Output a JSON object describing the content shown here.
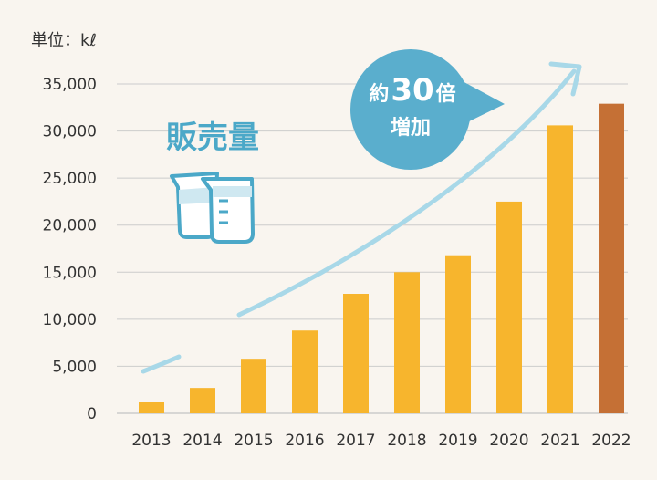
{
  "chart_data": {
    "type": "bar",
    "unit_label": "単位：kℓ",
    "series_title": "販売量",
    "annotation": {
      "prefix": "約",
      "number": "30",
      "suffix": "倍",
      "line2": "増加"
    },
    "categories": [
      "2013",
      "2014",
      "2015",
      "2016",
      "2017",
      "2018",
      "2019",
      "2020",
      "2021",
      "2022"
    ],
    "values": [
      1200,
      2700,
      5800,
      8800,
      12700,
      15000,
      16800,
      22500,
      30600,
      32900
    ],
    "y_ticks": [
      "0",
      "5,000",
      "10,000",
      "15,000",
      "20,000",
      "25,000",
      "30,000",
      "35,000"
    ],
    "ylim": [
      0,
      35000
    ],
    "grid": true,
    "colors": {
      "bar": "#f7b52d",
      "bar_highlight": "#c57035",
      "highlight_index": 9,
      "trend_arrow": "#a8d8e8",
      "callout": "#5aaecd",
      "title": "#4ba8c8",
      "grid": "#cccccc",
      "background": "#f9f5ef"
    }
  }
}
